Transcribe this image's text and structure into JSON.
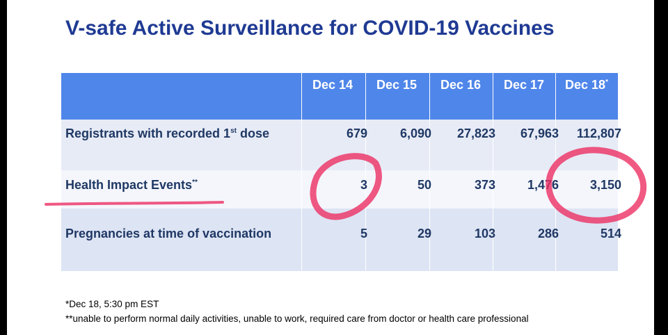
{
  "title": "V-safe Active Surveillance for COVID-19 Vaccines",
  "table": {
    "header": [
      {
        "text": "Dec 14",
        "sup": null
      },
      {
        "text": "Dec 15",
        "sup": null
      },
      {
        "text": "Dec 16",
        "sup": null
      },
      {
        "text": "Dec 17",
        "sup": null
      },
      {
        "text": "Dec 18",
        "sup": "*"
      }
    ],
    "rows": [
      {
        "label": {
          "text": "Registrants with recorded 1",
          "sup": "st",
          "after": " dose"
        },
        "cells": [
          "679",
          "6,090",
          "27,823",
          "67,963",
          "112,807"
        ]
      },
      {
        "label": {
          "text": "Health Impact Events",
          "sup": "**",
          "after": null
        },
        "cells": [
          "3",
          "50",
          "373",
          "1,476",
          "3,150"
        ]
      },
      {
        "label": {
          "text": "Pregnancies at time of vaccination",
          "sup": null,
          "after": null
        },
        "cells": [
          "5",
          "29",
          "103",
          "286",
          "514"
        ]
      }
    ]
  },
  "footnotes": [
    "*Dec 18, 5:30 pm EST",
    "**unable to perform normal daily activities, unable to work, required care from doctor or health care professional"
  ]
}
